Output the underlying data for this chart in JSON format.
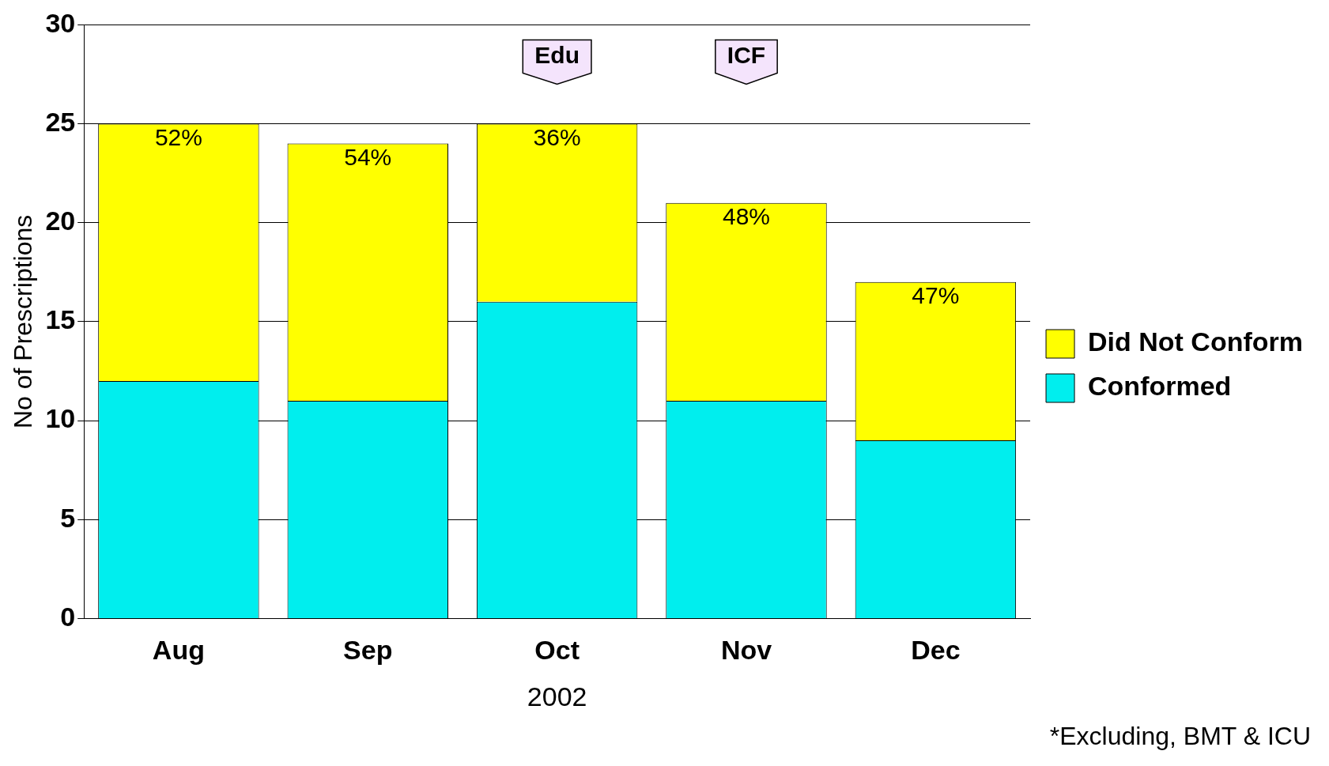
{
  "chart_data": {
    "type": "bar",
    "stacked": true,
    "ylabel": "No of Prescriptions",
    "xlabel": "2002",
    "categories": [
      "Aug",
      "Sep",
      "Oct",
      "Nov",
      "Dec"
    ],
    "series": [
      {
        "name": "Conformed",
        "color": "#00eeee",
        "values": [
          12,
          11,
          16,
          11,
          9
        ]
      },
      {
        "name": "Did Not Conform",
        "color": "#ffff00",
        "values": [
          13,
          13,
          9,
          10,
          8
        ]
      }
    ],
    "ylim": [
      0,
      30
    ],
    "yticks": [
      0,
      5,
      10,
      15,
      20,
      25,
      30
    ],
    "grid": "y",
    "legend": "right",
    "annotations": [
      {
        "text": "52%",
        "x": "Aug",
        "y": 25
      },
      {
        "text": "54%",
        "x": "Sep",
        "y": 24
      },
      {
        "text": "36%",
        "x": "Oct",
        "y": 25
      },
      {
        "text": "48%",
        "x": "Nov",
        "y": 21
      },
      {
        "text": "47%",
        "x": "Dec",
        "y": 17
      },
      "Edu",
      "ICF",
      "*Excluding, BMT & ICU"
    ]
  }
}
